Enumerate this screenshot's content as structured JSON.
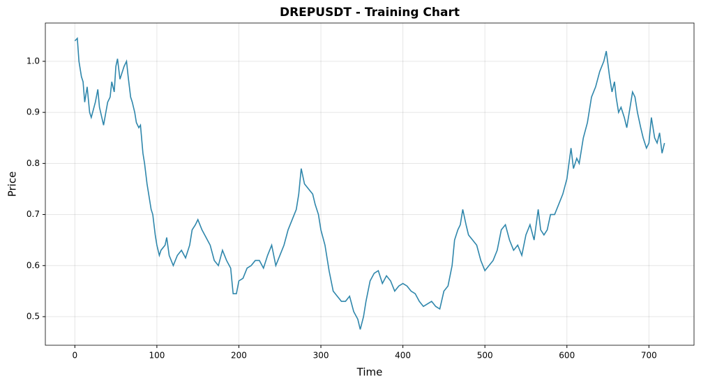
{
  "chart_data": {
    "type": "line",
    "title": "DREPUSDT - Training Chart",
    "x_label": "Time",
    "y_label": "Price",
    "x": [
      0,
      3,
      5,
      8,
      10,
      12,
      15,
      18,
      20,
      25,
      28,
      30,
      35,
      40,
      43,
      45,
      48,
      50,
      52,
      55,
      60,
      63,
      65,
      68,
      70,
      73,
      75,
      78,
      80,
      83,
      85,
      88,
      90,
      93,
      95,
      98,
      100,
      103,
      105,
      110,
      112,
      115,
      120,
      125,
      130,
      135,
      140,
      143,
      147,
      150,
      155,
      160,
      165,
      170,
      175,
      180,
      185,
      190,
      193,
      197,
      200,
      205,
      210,
      215,
      220,
      225,
      230,
      235,
      240,
      245,
      250,
      255,
      260,
      265,
      270,
      273,
      276,
      280,
      285,
      290,
      293,
      297,
      300,
      305,
      310,
      315,
      320,
      325,
      330,
      335,
      340,
      345,
      348,
      352,
      355,
      360,
      365,
      370,
      375,
      380,
      385,
      390,
      395,
      400,
      405,
      410,
      415,
      420,
      425,
      430,
      435,
      440,
      445,
      450,
      455,
      460,
      463,
      467,
      470,
      473,
      477,
      480,
      485,
      490,
      495,
      500,
      505,
      510,
      515,
      520,
      525,
      530,
      535,
      540,
      545,
      550,
      555,
      560,
      565,
      568,
      572,
      576,
      580,
      585,
      590,
      595,
      600,
      605,
      608,
      612,
      615,
      620,
      625,
      630,
      635,
      640,
      645,
      648,
      652,
      655,
      658,
      660,
      663,
      666,
      670,
      673,
      676,
      680,
      683,
      686,
      690,
      693,
      697,
      700,
      703,
      707,
      710,
      713,
      716,
      719
    ],
    "values": [
      1.04,
      1.045,
      1.0,
      0.97,
      0.96,
      0.92,
      0.95,
      0.9,
      0.89,
      0.92,
      0.945,
      0.91,
      0.875,
      0.92,
      0.93,
      0.96,
      0.94,
      0.99,
      1.005,
      0.965,
      0.99,
      1.0,
      0.97,
      0.93,
      0.92,
      0.9,
      0.88,
      0.87,
      0.875,
      0.82,
      0.8,
      0.76,
      0.74,
      0.71,
      0.7,
      0.66,
      0.64,
      0.62,
      0.63,
      0.64,
      0.655,
      0.62,
      0.6,
      0.62,
      0.63,
      0.615,
      0.64,
      0.67,
      0.68,
      0.69,
      0.67,
      0.655,
      0.64,
      0.61,
      0.6,
      0.63,
      0.61,
      0.595,
      0.545,
      0.545,
      0.57,
      0.575,
      0.595,
      0.6,
      0.61,
      0.61,
      0.595,
      0.62,
      0.64,
      0.6,
      0.62,
      0.64,
      0.67,
      0.69,
      0.71,
      0.74,
      0.79,
      0.76,
      0.75,
      0.74,
      0.72,
      0.7,
      0.67,
      0.64,
      0.59,
      0.55,
      0.54,
      0.53,
      0.53,
      0.54,
      0.51,
      0.495,
      0.475,
      0.5,
      0.53,
      0.57,
      0.585,
      0.59,
      0.565,
      0.58,
      0.57,
      0.55,
      0.56,
      0.565,
      0.56,
      0.55,
      0.545,
      0.53,
      0.52,
      0.525,
      0.53,
      0.52,
      0.515,
      0.55,
      0.56,
      0.6,
      0.65,
      0.67,
      0.68,
      0.71,
      0.68,
      0.66,
      0.65,
      0.64,
      0.61,
      0.59,
      0.6,
      0.61,
      0.63,
      0.67,
      0.68,
      0.65,
      0.63,
      0.64,
      0.62,
      0.66,
      0.68,
      0.65,
      0.71,
      0.67,
      0.66,
      0.67,
      0.7,
      0.7,
      0.72,
      0.74,
      0.77,
      0.83,
      0.79,
      0.81,
      0.8,
      0.85,
      0.88,
      0.93,
      0.95,
      0.98,
      1.0,
      1.02,
      0.97,
      0.94,
      0.96,
      0.93,
      0.9,
      0.91,
      0.89,
      0.87,
      0.9,
      0.94,
      0.93,
      0.9,
      0.87,
      0.85,
      0.83,
      0.84,
      0.89,
      0.85,
      0.84,
      0.86,
      0.82,
      0.84
    ],
    "color": "#2e86ab",
    "xlim": [
      -36,
      755
    ],
    "ylim": [
      0.444,
      1.075
    ],
    "xticks": [
      0,
      100,
      200,
      300,
      400,
      500,
      600,
      700
    ],
    "yticks": [
      0.5,
      0.6,
      0.7,
      0.8,
      0.9,
      {
        "value": 1,
        "label": "1.0"
      }
    ],
    "grid": true
  }
}
